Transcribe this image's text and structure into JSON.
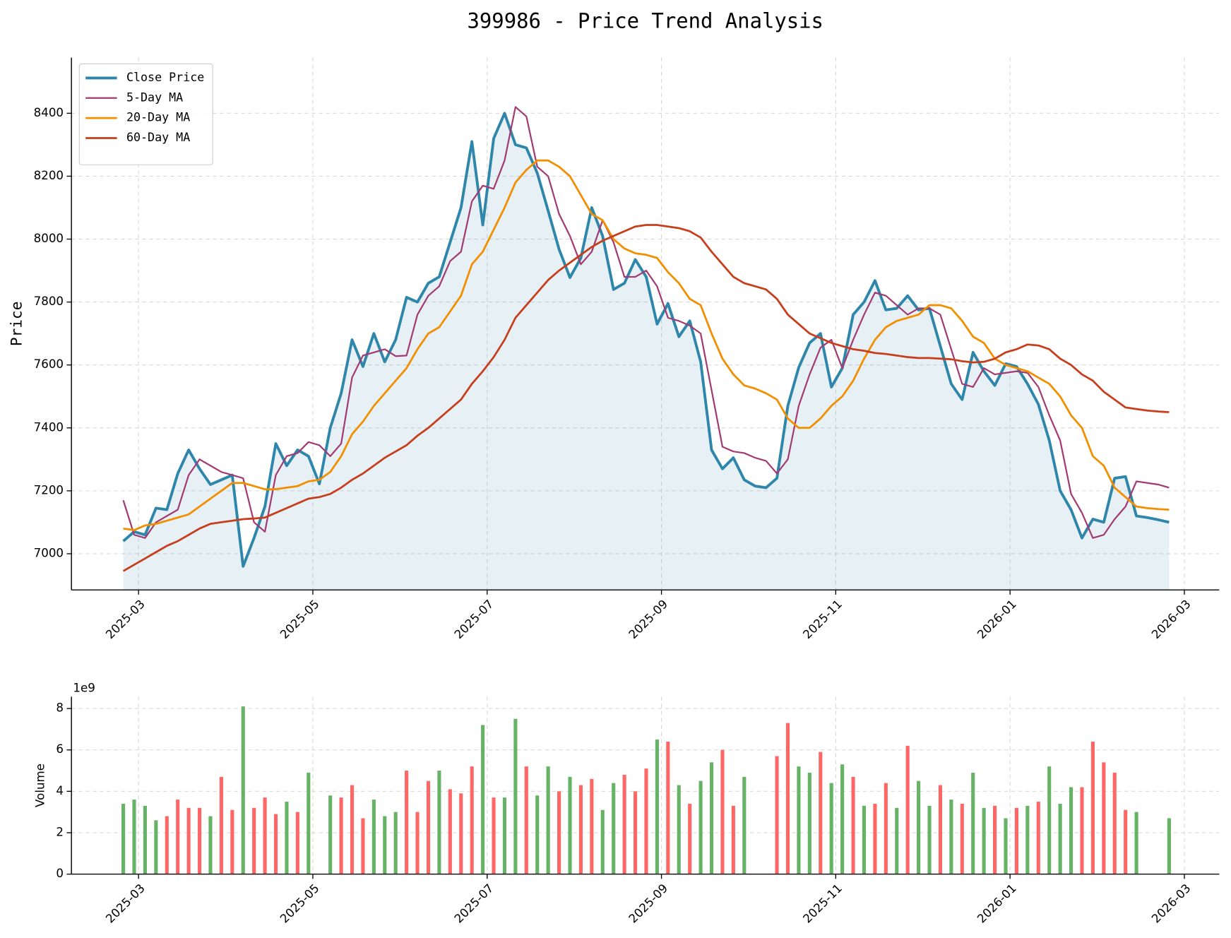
{
  "chart_data": [
    {
      "type": "line",
      "title": "399986 - Price Trend Analysis",
      "ylabel": "Price",
      "x": [
        -0.175,
        -0.05,
        0.075,
        0.2,
        0.325,
        0.45,
        0.575,
        0.7,
        0.825,
        0.95,
        1.075,
        1.2,
        1.325,
        1.45,
        1.575,
        1.7,
        1.825,
        1.95,
        2.075,
        2.2,
        2.325,
        2.45,
        2.575,
        2.7,
        2.825,
        2.95,
        3.075,
        3.2,
        3.325,
        3.45,
        3.575,
        3.7,
        3.825,
        3.95,
        4.075,
        4.2,
        4.325,
        4.45,
        4.575,
        4.7,
        4.825,
        4.95,
        5.075,
        5.2,
        5.325,
        5.45,
        5.575,
        5.7,
        5.825,
        5.95,
        6.075,
        6.2,
        6.325,
        6.45,
        6.575,
        6.7,
        6.825,
        6.95,
        7.075,
        7.2,
        7.325,
        7.45,
        7.575,
        7.7,
        7.825,
        7.95,
        8.075,
        8.2,
        8.325,
        8.45,
        8.575,
        8.7,
        8.825,
        8.95,
        9.075,
        9.2,
        9.325,
        9.45,
        9.575,
        9.7,
        9.825,
        9.95,
        10.075,
        10.2,
        10.325,
        10.45,
        10.575,
        10.7,
        10.825,
        10.95,
        11.075,
        11.2,
        11.325,
        11.45,
        11.575,
        11.7,
        11.825
      ],
      "xlim": [
        -0.77,
        12.4
      ],
      "xticks": [
        {
          "value": 0,
          "label": "2025-03"
        },
        {
          "value": 2,
          "label": "2025-05"
        },
        {
          "value": 4,
          "label": "2025-07"
        },
        {
          "value": 6,
          "label": "2025-09"
        },
        {
          "value": 8,
          "label": "2025-11"
        },
        {
          "value": 10,
          "label": "2026-01"
        },
        {
          "value": 12,
          "label": "2026-03"
        }
      ],
      "ylim": [
        6885,
        8577
      ],
      "yticks": [
        7000,
        7200,
        7400,
        7600,
        7800,
        8000,
        8200,
        8400
      ],
      "grid": true,
      "legend": "upper left",
      "series": [
        {
          "name": "Close Price",
          "color": "#2e86ab",
          "line_width": 3.5,
          "fill": true,
          "values": [
            7040,
            7070,
            7060,
            7145,
            7140,
            7255,
            7330,
            7270,
            7220,
            7235,
            7250,
            6960,
            7050,
            7150,
            7350,
            7280,
            7330,
            7310,
            7222,
            7400,
            7510,
            7680,
            7595,
            7700,
            7610,
            7680,
            7815,
            7800,
            7860,
            7880,
            7990,
            8100,
            8310,
            8045,
            8320,
            8400,
            8300,
            8290,
            8210,
            8090,
            7968,
            7878,
            7940,
            8100,
            8010,
            7840,
            7860,
            7935,
            7880,
            7730,
            7795,
            7690,
            7740,
            7610,
            7330,
            7270,
            7305,
            7235,
            7215,
            7210,
            7240,
            7470,
            7592,
            7670,
            7700,
            7530,
            7590,
            7760,
            7800,
            7868,
            7775,
            7780,
            7820,
            7775,
            7780,
            7660,
            7540,
            7490,
            7640,
            7580,
            7535,
            7604,
            7595,
            7540,
            7475,
            7360,
            7200,
            7140,
            7050,
            7110,
            7100,
            7240,
            7245,
            7120,
            7115,
            7108,
            7100
          ]
        },
        {
          "name": "5-Day MA",
          "color": "#a23b72",
          "line_width": 2,
          "values": [
            7170,
            7060,
            7050,
            7100,
            7120,
            7140,
            7250,
            7300,
            7280,
            7260,
            7250,
            7240,
            7100,
            7070,
            7250,
            7310,
            7320,
            7355,
            7345,
            7310,
            7350,
            7560,
            7630,
            7640,
            7650,
            7628,
            7630,
            7760,
            7820,
            7850,
            7930,
            7960,
            8120,
            8170,
            8160,
            8250,
            8420,
            8390,
            8230,
            8200,
            8080,
            8010,
            7920,
            7960,
            8060,
            7990,
            7880,
            7880,
            7900,
            7850,
            7750,
            7740,
            7725,
            7700,
            7520,
            7340,
            7325,
            7320,
            7305,
            7295,
            7255,
            7300,
            7470,
            7570,
            7655,
            7680,
            7590,
            7680,
            7760,
            7830,
            7820,
            7790,
            7760,
            7780,
            7780,
            7760,
            7650,
            7540,
            7530,
            7590,
            7570,
            7575,
            7580,
            7575,
            7530,
            7440,
            7360,
            7190,
            7130,
            7050,
            7060,
            7110,
            7150,
            7230,
            7225,
            7220,
            7210
          ]
        },
        {
          "name": "20-Day MA",
          "color": "#f18f01",
          "line_width": 2.5,
          "values": [
            7080,
            7075,
            7090,
            7095,
            7105,
            7115,
            7125,
            7150,
            7175,
            7200,
            7225,
            7225,
            7215,
            7205,
            7205,
            7210,
            7215,
            7230,
            7235,
            7260,
            7310,
            7380,
            7420,
            7470,
            7510,
            7550,
            7590,
            7650,
            7700,
            7720,
            7770,
            7820,
            7920,
            7960,
            8030,
            8100,
            8180,
            8220,
            8250,
            8250,
            8230,
            8200,
            8140,
            8080,
            8060,
            8000,
            7970,
            7955,
            7950,
            7940,
            7895,
            7860,
            7810,
            7790,
            7700,
            7620,
            7570,
            7535,
            7525,
            7510,
            7490,
            7430,
            7400,
            7400,
            7430,
            7470,
            7500,
            7550,
            7620,
            7680,
            7720,
            7740,
            7750,
            7760,
            7790,
            7790,
            7780,
            7740,
            7690,
            7670,
            7620,
            7600,
            7590,
            7580,
            7560,
            7540,
            7500,
            7440,
            7400,
            7310,
            7280,
            7210,
            7180,
            7150,
            7145,
            7142,
            7140
          ]
        },
        {
          "name": "60-Day MA",
          "color": "#c73e1d",
          "line_width": 2.5,
          "values": [
            6945,
            6965,
            6985,
            7005,
            7025,
            7040,
            7060,
            7080,
            7095,
            7100,
            7105,
            7110,
            7112,
            7115,
            7130,
            7145,
            7160,
            7175,
            7180,
            7190,
            7210,
            7235,
            7255,
            7280,
            7305,
            7325,
            7345,
            7375,
            7400,
            7430,
            7460,
            7490,
            7540,
            7580,
            7625,
            7680,
            7750,
            7790,
            7830,
            7870,
            7900,
            7925,
            7950,
            7975,
            7995,
            8010,
            8025,
            8040,
            8045,
            8045,
            8040,
            8035,
            8025,
            8005,
            7960,
            7920,
            7880,
            7860,
            7850,
            7840,
            7810,
            7760,
            7730,
            7700,
            7685,
            7670,
            7660,
            7650,
            7645,
            7638,
            7635,
            7630,
            7625,
            7622,
            7622,
            7620,
            7618,
            7612,
            7608,
            7610,
            7620,
            7640,
            7650,
            7665,
            7662,
            7650,
            7620,
            7600,
            7570,
            7550,
            7515,
            7490,
            7465,
            7460,
            7455,
            7452,
            7450
          ]
        }
      ]
    },
    {
      "type": "bar",
      "ylabel": "Volume",
      "y_offset_label": "1e9",
      "x": [
        -0.175,
        -0.05,
        0.075,
        0.2,
        0.325,
        0.45,
        0.575,
        0.7,
        0.825,
        0.95,
        1.075,
        1.2,
        1.325,
        1.45,
        1.575,
        1.7,
        1.825,
        1.95,
        2.075,
        2.2,
        2.325,
        2.45,
        2.575,
        2.7,
        2.825,
        2.95,
        3.075,
        3.2,
        3.325,
        3.45,
        3.575,
        3.7,
        3.825,
        3.95,
        4.075,
        4.2,
        4.325,
        4.45,
        4.575,
        4.7,
        4.825,
        4.95,
        5.075,
        5.2,
        5.325,
        5.45,
        5.575,
        5.7,
        5.825,
        5.95,
        6.075,
        6.2,
        6.325,
        6.45,
        6.575,
        6.7,
        6.825,
        6.95,
        7.075,
        7.2,
        7.325,
        7.45,
        7.575,
        7.7,
        7.825,
        7.95,
        8.075,
        8.2,
        8.325,
        8.45,
        8.575,
        8.7,
        8.825,
        8.95,
        9.075,
        9.2,
        9.325,
        9.45,
        9.575,
        9.7,
        9.825,
        9.95,
        10.075,
        10.2,
        10.325,
        10.45,
        10.575,
        10.7,
        10.825,
        10.95,
        11.075,
        11.2,
        11.325,
        11.45,
        11.575,
        11.7,
        11.825
      ],
      "xlim": [
        -0.77,
        12.4
      ],
      "xticks": [
        {
          "value": 0,
          "label": "2025-03"
        },
        {
          "value": 2,
          "label": "2025-05"
        },
        {
          "value": 4,
          "label": "2025-07"
        },
        {
          "value": 6,
          "label": "2025-09"
        },
        {
          "value": 8,
          "label": "2025-11"
        },
        {
          "value": 10,
          "label": "2026-01"
        },
        {
          "value": 12,
          "label": "2026-03"
        }
      ],
      "ylim": [
        0,
        8570000000.0
      ],
      "yticks": [
        0,
        {
          "value": 2000000000.0,
          "label": "2"
        },
        {
          "value": 4000000000.0,
          "label": "4"
        },
        {
          "value": 6000000000.0,
          "label": "6"
        },
        {
          "value": 8000000000.0,
          "label": "8"
        }
      ],
      "grid": true,
      "values": [
        3400000000.0,
        3600000000.0,
        3300000000.0,
        2600000000.0,
        2800000000.0,
        3600000000.0,
        3200000000.0,
        3200000000.0,
        2800000000.0,
        4700000000.0,
        3100000000.0,
        8100000000.0,
        3200000000.0,
        3700000000.0,
        2900000000.0,
        3500000000.0,
        3000000000.0,
        4900000000.0,
        null,
        3800000000.0,
        3700000000.0,
        4300000000.0,
        2700000000.0,
        3600000000.0,
        2800000000.0,
        3000000000.0,
        5000000000.0,
        3000000000.0,
        4500000000.0,
        5000000000.0,
        4100000000.0,
        3900000000.0,
        5200000000.0,
        7200000000.0,
        3700000000.0,
        3700000000.0,
        7500000000.0,
        5200000000.0,
        3800000000.0,
        5200000000.0,
        4000000000.0,
        4700000000.0,
        4300000000.0,
        4600000000.0,
        3100000000.0,
        4400000000.0,
        4800000000.0,
        4000000000.0,
        5100000000.0,
        6500000000.0,
        6400000000.0,
        4300000000.0,
        3400000000.0,
        4500000000.0,
        5400000000.0,
        6000000000.0,
        3300000000.0,
        4700000000.0,
        null,
        null,
        5700000000.0,
        7300000000.0,
        5200000000.0,
        4900000000.0,
        5900000000.0,
        4400000000.0,
        5300000000.0,
        4700000000.0,
        3300000000.0,
        3400000000.0,
        4400000000.0,
        3200000000.0,
        6200000000.0,
        4500000000.0,
        3300000000.0,
        4300000000.0,
        3600000000.0,
        3400000000.0,
        4900000000.0,
        3200000000.0,
        3300000000.0,
        2700000000.0,
        3200000000.0,
        3300000000.0,
        3500000000.0,
        5200000000.0,
        3400000000.0,
        4200000000.0,
        4200000000.0,
        6400000000.0,
        5400000000.0,
        4900000000.0,
        3100000000.0,
        3000000000.0,
        null,
        null,
        2700000000.0
      ],
      "colors": [
        "#66b366",
        "#66b366",
        "#66b366",
        "#66b366",
        "#ff6666",
        "#ff6666",
        "#ff6666",
        "#ff6666",
        "#66b366",
        "#ff6666",
        "#ff6666",
        "#66b366",
        "#ff6666",
        "#ff6666",
        "#ff6666",
        "#66b366",
        "#ff6666",
        "#66b366",
        null,
        "#66b366",
        "#ff6666",
        "#ff6666",
        "#ff6666",
        "#66b366",
        "#66b366",
        "#66b366",
        "#ff6666",
        "#ff6666",
        "#ff6666",
        "#66b366",
        "#ff6666",
        "#ff6666",
        "#ff6666",
        "#66b366",
        "#ff6666",
        "#66b366",
        "#66b366",
        "#ff6666",
        "#66b366",
        "#66b366",
        "#ff6666",
        "#66b366",
        "#ff6666",
        "#ff6666",
        "#66b366",
        "#66b366",
        "#ff6666",
        "#ff6666",
        "#ff6666",
        "#66b366",
        "#ff6666",
        "#66b366",
        "#ff6666",
        "#66b366",
        "#66b366",
        "#ff6666",
        "#ff6666",
        "#66b366",
        null,
        null,
        "#ff6666",
        "#ff6666",
        "#66b366",
        "#66b366",
        "#ff6666",
        "#66b366",
        "#66b366",
        "#ff6666",
        "#66b366",
        "#ff6666",
        "#ff6666",
        "#66b366",
        "#ff6666",
        "#66b366",
        "#66b366",
        "#ff6666",
        "#66b366",
        "#ff6666",
        "#66b366",
        "#66b366",
        "#ff6666",
        "#66b366",
        "#ff6666",
        "#66b366",
        "#ff6666",
        "#66b366",
        "#66b366",
        "#66b366",
        "#ff6666",
        "#ff6666",
        "#ff6666",
        "#ff6666",
        "#ff6666",
        "#66b366",
        null,
        null,
        "#66b366"
      ]
    }
  ]
}
